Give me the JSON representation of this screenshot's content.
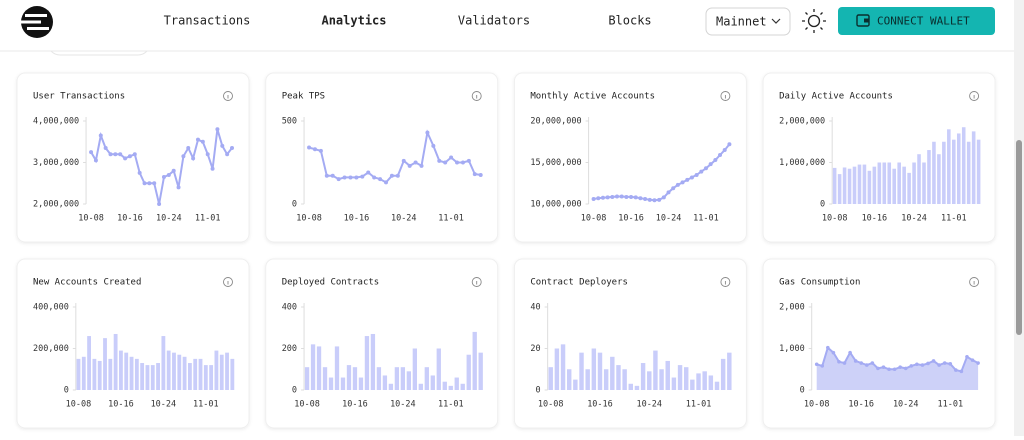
{
  "header": {
    "nav": [
      "Transactions",
      "Analytics",
      "Validators",
      "Blocks"
    ],
    "active": 1,
    "network": "Mainnet",
    "button": "CONNECT WALLET"
  },
  "chart_data": [
    {
      "type": "line",
      "title": "User Transactions",
      "color": "#a4abf3",
      "categories": [
        "10-08",
        null,
        null,
        null,
        null,
        null,
        null,
        null,
        "10-16",
        null,
        null,
        null,
        null,
        null,
        null,
        null,
        "10-24",
        null,
        null,
        null,
        null,
        null,
        null,
        null,
        "11-01",
        null,
        null,
        null,
        null,
        null
      ],
      "values": [
        3250000,
        3050000,
        3650000,
        3350000,
        3200000,
        3200000,
        3200000,
        3100000,
        3150000,
        3200000,
        2750000,
        2500000,
        2500000,
        2500000,
        2000000,
        2650000,
        2700000,
        2800000,
        2400000,
        3150000,
        3350000,
        3100000,
        3550000,
        3500000,
        3200000,
        2850000,
        3800000,
        3400000,
        3200000,
        3350000
      ],
      "ylim": [
        2000000,
        4000000
      ],
      "yticks": [
        {
          "value": 2000000,
          "label": "2,000,000"
        },
        {
          "value": 3000000,
          "label": "3,000,000"
        },
        {
          "value": 4000000,
          "label": "4,000,000"
        }
      ]
    },
    {
      "type": "line",
      "title": "Peak TPS",
      "color": "#a4abf3",
      "categories": [
        "10-08",
        null,
        null,
        null,
        null,
        null,
        null,
        null,
        "10-16",
        null,
        null,
        null,
        null,
        null,
        null,
        null,
        "10-24",
        null,
        null,
        null,
        null,
        null,
        null,
        null,
        "11-01",
        null,
        null,
        null,
        null,
        null
      ],
      "values": [
        340,
        330,
        320,
        170,
        170,
        150,
        160,
        160,
        160,
        165,
        190,
        160,
        150,
        130,
        170,
        170,
        260,
        230,
        250,
        230,
        430,
        350,
        260,
        250,
        280,
        250,
        250,
        260,
        180,
        175
      ],
      "ylim": [
        0,
        500
      ],
      "yticks": [
        0,
        500
      ]
    },
    {
      "type": "line",
      "title": "Monthly Active Accounts",
      "color": "#a4abf3",
      "categories": [
        "10-08",
        null,
        null,
        null,
        null,
        null,
        null,
        null,
        "10-16",
        null,
        null,
        null,
        null,
        null,
        null,
        null,
        "10-24",
        null,
        null,
        null,
        null,
        null,
        null,
        null,
        "11-01",
        null,
        null,
        null,
        null,
        null
      ],
      "values": [
        10600000,
        10700000,
        10750000,
        10800000,
        10850000,
        10900000,
        10900000,
        10850000,
        10850000,
        10800000,
        10700000,
        10600000,
        10500000,
        10450000,
        10500000,
        10800000,
        11400000,
        11900000,
        12300000,
        12600000,
        12900000,
        13200000,
        13500000,
        13900000,
        14300000,
        14800000,
        15300000,
        15900000,
        16500000,
        17200000
      ],
      "ylim": [
        10000000,
        20000000
      ],
      "yticks": [
        {
          "value": 10000000,
          "label": "10,000,000"
        },
        {
          "value": 15000000,
          "label": "15,000,000"
        },
        {
          "value": 20000000,
          "label": "20,000,000"
        }
      ]
    },
    {
      "type": "bar",
      "title": "Daily Active Accounts",
      "color": "#c9cdfa",
      "categories": [
        "10-08",
        null,
        null,
        null,
        null,
        null,
        null,
        null,
        "10-16",
        null,
        null,
        null,
        null,
        null,
        null,
        null,
        "10-24",
        null,
        null,
        null,
        null,
        null,
        null,
        null,
        "11-01",
        null,
        null,
        null,
        null,
        null
      ],
      "values": [
        870000,
        720000,
        880000,
        850000,
        900000,
        950000,
        950000,
        800000,
        900000,
        1000000,
        1000000,
        1000000,
        850000,
        1000000,
        900000,
        750000,
        1000000,
        1200000,
        1000000,
        1300000,
        1500000,
        1200000,
        1500000,
        1800000,
        1550000,
        1700000,
        1850000,
        1500000,
        1750000,
        1550000
      ],
      "ylim": [
        0,
        2000000
      ],
      "yticks": [
        0,
        {
          "value": 1000000,
          "label": "1,000,000"
        },
        {
          "value": 2000000,
          "label": "2,000,000"
        }
      ]
    },
    {
      "type": "bar",
      "title": "New Accounts Created",
      "color": "#c9cdfa",
      "categories": [
        "10-08",
        null,
        null,
        null,
        null,
        null,
        null,
        null,
        "10-16",
        null,
        null,
        null,
        null,
        null,
        null,
        null,
        "10-24",
        null,
        null,
        null,
        null,
        null,
        null,
        null,
        "11-01",
        null,
        null,
        null,
        null,
        null
      ],
      "values": [
        150000,
        160000,
        260000,
        150000,
        140000,
        250000,
        150000,
        270000,
        190000,
        180000,
        160000,
        150000,
        130000,
        120000,
        120000,
        130000,
        260000,
        190000,
        180000,
        170000,
        160000,
        130000,
        150000,
        150000,
        120000,
        120000,
        190000,
        170000,
        180000,
        150000
      ],
      "ylim": [
        0,
        400000
      ],
      "yticks": [
        0,
        {
          "value": 200000,
          "label": "200,000"
        },
        {
          "value": 400000,
          "label": "400,000"
        }
      ]
    },
    {
      "type": "bar",
      "title": "Deployed Contracts",
      "color": "#c9cdfa",
      "categories": [
        "10-08",
        null,
        null,
        null,
        null,
        null,
        null,
        null,
        "10-16",
        null,
        null,
        null,
        null,
        null,
        null,
        null,
        "10-24",
        null,
        null,
        null,
        null,
        null,
        null,
        null,
        "11-01",
        null,
        null,
        null,
        null,
        null
      ],
      "values": [
        110,
        220,
        210,
        110,
        60,
        210,
        60,
        120,
        110,
        60,
        260,
        270,
        110,
        70,
        30,
        110,
        110,
        90,
        200,
        30,
        110,
        70,
        200,
        40,
        20,
        60,
        30,
        170,
        280,
        180
      ],
      "ylim": [
        0,
        400
      ],
      "yticks": [
        0,
        200,
        400
      ]
    },
    {
      "type": "bar",
      "title": "Contract Deployers",
      "color": "#c9cdfa",
      "categories": [
        "10-08",
        null,
        null,
        null,
        null,
        null,
        null,
        null,
        "10-16",
        null,
        null,
        null,
        null,
        null,
        null,
        null,
        "10-24",
        null,
        null,
        null,
        null,
        null,
        null,
        null,
        "11-01",
        null,
        null,
        null,
        null,
        null
      ],
      "values": [
        11,
        20,
        22,
        10,
        5,
        18,
        10,
        20,
        18,
        10,
        16,
        12,
        10,
        3,
        2,
        13,
        9,
        19,
        10,
        14,
        6,
        12,
        11,
        5,
        8,
        9,
        7,
        4,
        15,
        18
      ],
      "ylim": [
        0,
        40
      ],
      "yticks": [
        0,
        20,
        40
      ]
    },
    {
      "type": "area",
      "title": "Gas Consumption",
      "color": "#a4abf3",
      "categories": [
        "10-08",
        null,
        null,
        null,
        null,
        null,
        null,
        null,
        "10-16",
        null,
        null,
        null,
        null,
        null,
        null,
        null,
        "10-24",
        null,
        null,
        null,
        null,
        null,
        null,
        null,
        "11-01",
        null,
        null,
        null,
        null,
        null
      ],
      "values": [
        620,
        580,
        1020,
        900,
        680,
        650,
        900,
        700,
        650,
        600,
        650,
        520,
        550,
        500,
        500,
        550,
        520,
        580,
        620,
        600,
        640,
        700,
        600,
        650,
        630,
        480,
        450,
        800,
        720,
        650
      ],
      "ylim": [
        0,
        2000
      ],
      "yticks": [
        0,
        {
          "value": 1000,
          "label": "1,000"
        },
        {
          "value": 2000,
          "label": "2,000"
        }
      ]
    }
  ]
}
